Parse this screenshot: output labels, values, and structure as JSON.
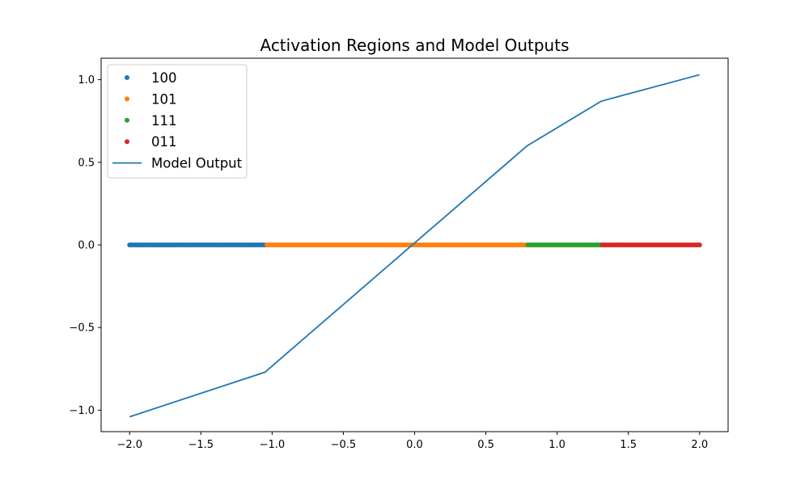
{
  "chart_data": {
    "type": "scatter",
    "title": "Activation Regions and Model Outputs",
    "xlabel": "",
    "ylabel": "",
    "xlim": [
      -2.2,
      2.2
    ],
    "ylim": [
      -1.13,
      1.13
    ],
    "grid": false,
    "legend_position": "top-left",
    "x_ticks": [
      -2.0,
      -1.5,
      -1.0,
      -0.5,
      0.0,
      0.5,
      1.0,
      1.5,
      2.0
    ],
    "x_tick_labels": [
      "−2.0",
      "−1.5",
      "−1.0",
      "−0.5",
      "0.0",
      "0.5",
      "1.0",
      "1.5",
      "2.0"
    ],
    "y_ticks": [
      -1.0,
      -0.5,
      0.0,
      0.5,
      1.0
    ],
    "y_tick_labels": [
      "−1.0",
      "−0.5",
      "0.0",
      "0.5",
      "1.0"
    ],
    "regions": [
      {
        "name": "100",
        "x_range": [
          -2.0,
          -1.05
        ],
        "y": 0.0,
        "color": "#1f77b4"
      },
      {
        "name": "101",
        "x_range": [
          -1.05,
          0.79
        ],
        "y": 0.0,
        "color": "#ff7f0e"
      },
      {
        "name": "111",
        "x_range": [
          0.79,
          1.31
        ],
        "y": 0.0,
        "color": "#2ca02c"
      },
      {
        "name": "011",
        "x_range": [
          1.31,
          2.0
        ],
        "y": 0.0,
        "color": "#d62728"
      }
    ],
    "series": [
      {
        "name": "Model Output",
        "color": "#1f77b4",
        "x": [
          -2.0,
          -1.05,
          0.79,
          1.31,
          2.0
        ],
        "y": [
          -1.04,
          -0.77,
          0.6,
          0.87,
          1.03
        ]
      }
    ]
  }
}
